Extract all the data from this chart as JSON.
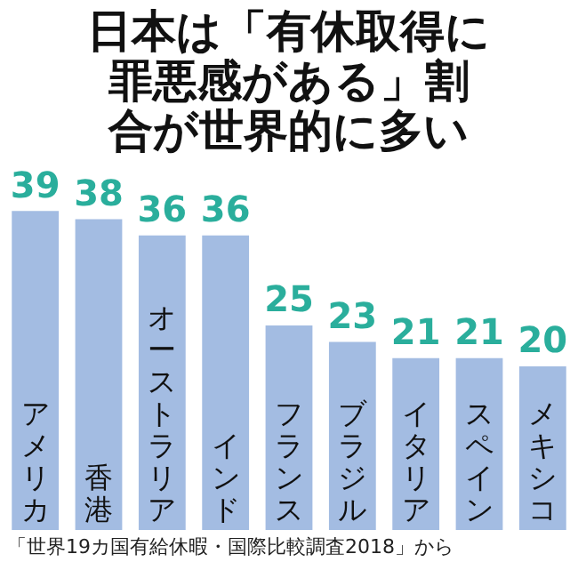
{
  "chart_data": {
    "type": "bar",
    "title": "日本は「有休取得に罪悪感がある」割合が世界的に多い",
    "categories": [
      "アメリカ",
      "香港",
      "オーストラリア",
      "インド",
      "フランス",
      "ブラジル",
      "イタリア",
      "スペイン",
      "メキシコ"
    ],
    "values": [
      39,
      38,
      36,
      36,
      25,
      23,
      21,
      21,
      20
    ],
    "color": "#a3bce2",
    "data_labels": true,
    "annotations": [
      "「世界19カ国有給休暇・国際比較調査2018」から"
    ]
  }
}
